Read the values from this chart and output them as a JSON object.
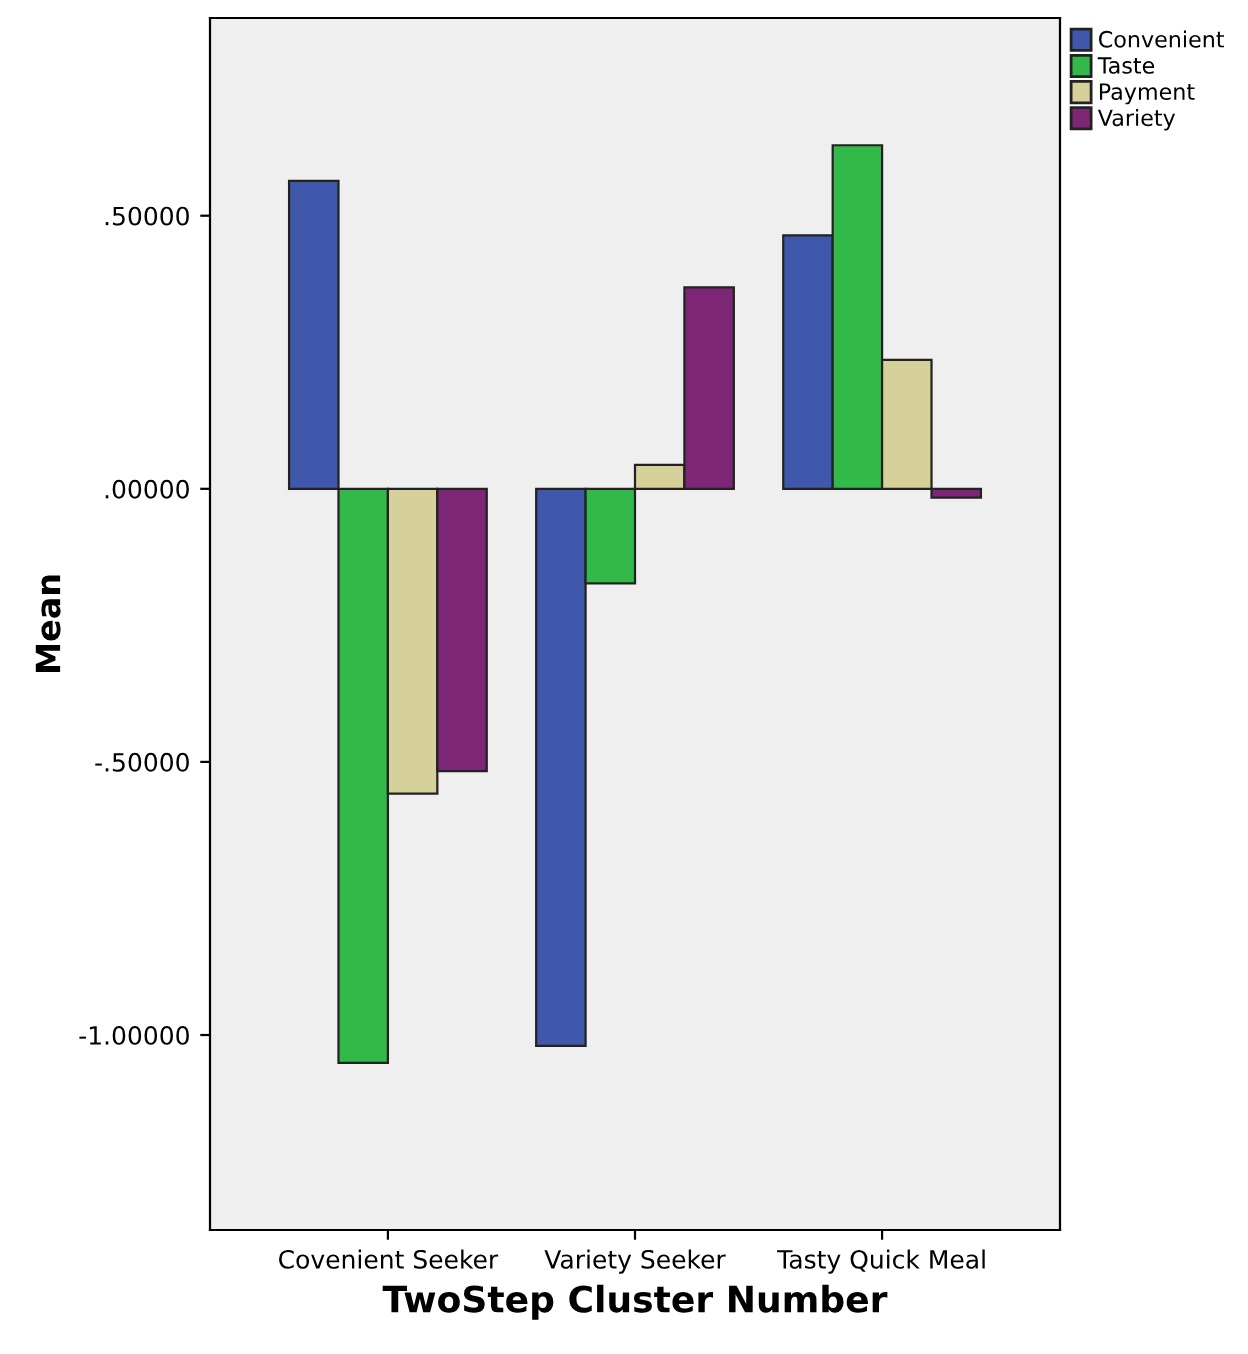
{
  "chart_data": {
    "type": "bar",
    "xlabel": "TwoStep Cluster Number",
    "ylabel": "Mean",
    "categories": [
      "Covenient Seeker",
      "Variety Seeker",
      "Tasty Quick Meal"
    ],
    "series": [
      {
        "name": "Convenient",
        "color": "#3f58ab",
        "values": [
          0.564,
          -1.02,
          0.464
        ]
      },
      {
        "name": "Taste",
        "color": "#33b84a",
        "values": [
          -1.051,
          -0.173,
          0.629
        ]
      },
      {
        "name": "Payment",
        "color": "#d6d19a",
        "values": [
          -0.558,
          0.044,
          0.236
        ]
      },
      {
        "name": "Variety",
        "color": "#7d2675",
        "values": [
          -0.517,
          0.369,
          -0.016
        ]
      }
    ],
    "ylim": [
      -1.357,
      0.862
    ],
    "yticks": [
      {
        "value": -1.0,
        "label": "-1.00000"
      },
      {
        "value": -0.5,
        "label": "-.50000"
      },
      {
        "value": 0,
        "label": ".00000"
      },
      {
        "value": 0.5,
        "label": ".50000"
      }
    ],
    "grid": false,
    "legend": "top right"
  }
}
